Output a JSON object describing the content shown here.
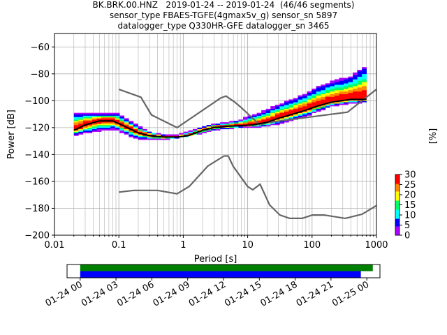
{
  "titles": {
    "line1": "BK.BRK.00.HNZ   2019-01-24 -- 2019-01-24  (46/46 segments)",
    "line2": "sensor_type FBAES-TGFE(4gmax5v_g) sensor_sn 5897",
    "line3": "datalogger_type Q330HR-GFE datalogger_sn 3465"
  },
  "chart_data": [
    {
      "type": "heatmap",
      "title": "",
      "xlabel": "Period [s]",
      "ylabel": "Power [dB]",
      "xscale": "log",
      "xlim": [
        0.01,
        1000
      ],
      "ylim": [
        -200,
        -50
      ],
      "x_ticks": [
        0.01,
        0.1,
        1,
        10,
        100,
        1000
      ],
      "x_tick_labels": [
        "0.01",
        "0.1",
        "1",
        "10",
        "100",
        "1000"
      ],
      "y_ticks": [
        -200,
        -180,
        -160,
        -140,
        -120,
        -100,
        -80,
        -60
      ],
      "y_tick_labels": [
        "−200",
        "−180",
        "−160",
        "−140",
        "−120",
        "−100",
        "−80",
        "−60"
      ],
      "grid": true,
      "colorbar": {
        "label": "[%]",
        "min": 0,
        "max": 30,
        "ticks": [
          0,
          5,
          10,
          15,
          20,
          25,
          30
        ],
        "tick_labels": [
          "0",
          "5",
          "10",
          "15",
          "20",
          "25",
          "30"
        ],
        "colormap": [
          "#ffffff",
          "#aa00ff",
          "#0000ff",
          "#00ffff",
          "#00ff66",
          "#ffff00",
          "#ff8800",
          "#ff0000"
        ]
      },
      "noise_model_color": "#666666",
      "series": [
        {
          "role": "new-high-noise-model",
          "x": [
            0.1,
            0.22,
            0.32,
            0.8,
            3.8,
            4.6,
            6.3,
            7.9,
            15.4,
            20,
            354.8,
            1000
          ],
          "y": [
            -91.5,
            -97.4,
            -110.5,
            -120,
            -98,
            -96.5,
            -101,
            -105,
            -118,
            -116.3,
            -108.5,
            -91.5
          ]
        },
        {
          "role": "new-low-noise-model",
          "x": [
            0.1,
            0.17,
            0.4,
            0.8,
            1.24,
            2.4,
            4.3,
            5,
            6,
            10,
            12,
            15.6,
            21.9,
            31.6,
            45,
            70,
            101,
            154,
            328,
            600,
            1000
          ],
          "y": [
            -168,
            -166.7,
            -166.7,
            -169.2,
            -163.7,
            -148.6,
            -141.1,
            -141.1,
            -149,
            -163.8,
            -166.2,
            -162.1,
            -177.5,
            -185,
            -187.5,
            -187.5,
            -185,
            -185,
            -187.5,
            -184.4,
            -178
          ]
        },
        {
          "role": "mode",
          "x": [
            0.02,
            0.03,
            0.05,
            0.08,
            0.1,
            0.15,
            0.2,
            0.3,
            0.5,
            0.8,
            1.2,
            2,
            3,
            5,
            8,
            12,
            20,
            30,
            50,
            80,
            120,
            200,
            400,
            700
          ],
          "y": [
            -122,
            -118,
            -115,
            -115,
            -117,
            -121,
            -124,
            -126,
            -127,
            -127,
            -126,
            -122,
            -120,
            -119,
            -118.5,
            -118,
            -116,
            -113,
            -110,
            -107,
            -104,
            -101,
            -99,
            -99
          ]
        }
      ],
      "psd_density": {
        "description_values": "center line and spread per period",
        "x": [
          0.02,
          0.03,
          0.05,
          0.08,
          0.1,
          0.15,
          0.2,
          0.3,
          0.5,
          0.8,
          1.2,
          2,
          3,
          5,
          8,
          12,
          20,
          30,
          50,
          80,
          120,
          200,
          400,
          700
        ],
        "center": [
          -122,
          -118,
          -115,
          -115,
          -117,
          -121,
          -124,
          -126,
          -127,
          -127,
          -126,
          -122,
          -120,
          -119,
          -118.5,
          -118,
          -116,
          -113,
          -110,
          -107,
          -104,
          -101,
          -99,
          -99
        ],
        "spread_low": [
          -126,
          -124,
          -122,
          -121,
          -122,
          -126,
          -128,
          -129,
          -129,
          -128,
          -127,
          -124,
          -122,
          -121,
          -120,
          -120,
          -119,
          -117,
          -114,
          -111,
          -108,
          -104,
          -102,
          -101
        ],
        "spread_high": [
          -111,
          -110,
          -110,
          -110,
          -111,
          -116,
          -120,
          -124,
          -126,
          -126,
          -124,
          -120,
          -118,
          -117,
          -115,
          -112,
          -108,
          -104,
          -100,
          -96,
          -91,
          -87,
          -83,
          -75
        ]
      }
    },
    {
      "type": "bar",
      "title": "",
      "xlabel": "",
      "ylabel": "",
      "role": "data-coverage",
      "x_tick_labels": [
        "01-24 00",
        "01-24 03",
        "01-24 06",
        "01-24 09",
        "01-24 12",
        "01-24 15",
        "01-24 18",
        "01-24 21",
        "01-25 00"
      ],
      "xlim_hours": [
        -1.1,
        25.1
      ],
      "series": [
        {
          "role": "data-available",
          "color": "#008000",
          "start_hour": 0,
          "end_hour": 24.5
        },
        {
          "role": "segments-used",
          "color": "#0000ff",
          "start_hour": 0,
          "end_hour": 23.5
        }
      ]
    }
  ]
}
